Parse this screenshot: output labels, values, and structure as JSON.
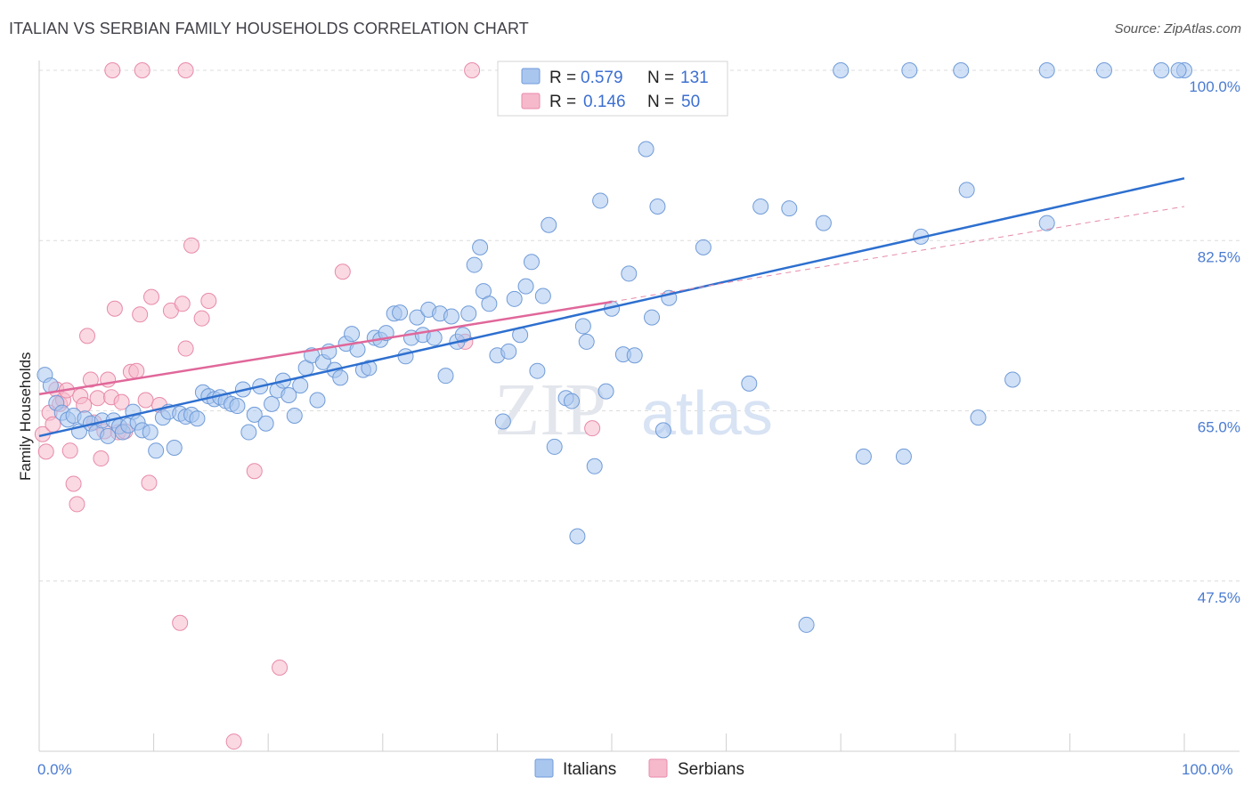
{
  "title": "ITALIAN VS SERBIAN FAMILY HOUSEHOLDS CORRELATION CHART",
  "source": "Source: ZipAtlas.com",
  "watermark": {
    "zip": "ZIP",
    "atlas": "atlas"
  },
  "chart_data": {
    "type": "scatter",
    "ylabel": "Family Households",
    "xlim": [
      0,
      100
    ],
    "ylim": [
      30,
      100
    ],
    "x_tick_labels": {
      "min": "0.0%",
      "max": "100.0%"
    },
    "y_ticks": [
      {
        "value": 47.5,
        "label": "47.5%"
      },
      {
        "value": 65.0,
        "label": "65.0%"
      },
      {
        "value": 82.5,
        "label": "82.5%"
      },
      {
        "value": 100.0,
        "label": "100.0%"
      }
    ],
    "grid": true,
    "legend_position": "top-center",
    "stats": [
      {
        "r_label": "R =",
        "r_value": "0.579",
        "n_label": "N =",
        "n_value": "131",
        "color": "#a9c6ef"
      },
      {
        "r_label": "R =",
        "r_value": "0.146",
        "n_label": "N =",
        "n_value": "50",
        "color": "#f6b9cc"
      }
    ],
    "series": [
      {
        "name": "Italians",
        "color": "#a9c6ef",
        "edge": "#6f9bd8",
        "trend": {
          "x0": 0,
          "y0": 62.4,
          "x1": 100,
          "y1": 88.9,
          "color": "#2d6fcf"
        },
        "points": [
          [
            0.5,
            68.7
          ],
          [
            1,
            67.6
          ],
          [
            1.5,
            65.8
          ],
          [
            2,
            64.8
          ],
          [
            2.5,
            64.1
          ],
          [
            3,
            64.5
          ],
          [
            3.5,
            62.9
          ],
          [
            4,
            64.2
          ],
          [
            4.5,
            63.7
          ],
          [
            5,
            62.8
          ],
          [
            5.5,
            64.0
          ],
          [
            6,
            62.4
          ],
          [
            6.5,
            64.0
          ],
          [
            7,
            63.4
          ],
          [
            7.3,
            62.8
          ],
          [
            7.8,
            63.5
          ],
          [
            8.2,
            64.9
          ],
          [
            8.6,
            63.8
          ],
          [
            9,
            63.0
          ],
          [
            9.7,
            62.8
          ],
          [
            10.2,
            60.9
          ],
          [
            10.8,
            64.3
          ],
          [
            11.3,
            64.9
          ],
          [
            11.8,
            61.2
          ],
          [
            12.3,
            64.7
          ],
          [
            12.8,
            64.4
          ],
          [
            13.3,
            64.6
          ],
          [
            13.8,
            64.2
          ],
          [
            14.3,
            66.9
          ],
          [
            14.8,
            66.5
          ],
          [
            15.3,
            66.2
          ],
          [
            15.8,
            66.4
          ],
          [
            16.3,
            66.0
          ],
          [
            16.8,
            65.7
          ],
          [
            17.3,
            65.5
          ],
          [
            17.8,
            67.2
          ],
          [
            18.3,
            62.8
          ],
          [
            18.8,
            64.6
          ],
          [
            19.3,
            67.5
          ],
          [
            19.8,
            63.7
          ],
          [
            20.3,
            65.7
          ],
          [
            20.8,
            67.1
          ],
          [
            21.3,
            68.1
          ],
          [
            21.8,
            66.6
          ],
          [
            22.3,
            64.5
          ],
          [
            22.8,
            67.6
          ],
          [
            23.3,
            69.4
          ],
          [
            23.8,
            70.7
          ],
          [
            24.3,
            66.1
          ],
          [
            24.8,
            70.0
          ],
          [
            25.3,
            71.1
          ],
          [
            25.8,
            69.2
          ],
          [
            26.3,
            68.4
          ],
          [
            26.8,
            71.9
          ],
          [
            27.3,
            72.9
          ],
          [
            27.8,
            71.3
          ],
          [
            28.3,
            69.2
          ],
          [
            28.8,
            69.4
          ],
          [
            29.3,
            72.5
          ],
          [
            29.8,
            72.3
          ],
          [
            30.3,
            73.0
          ],
          [
            31,
            75.0
          ],
          [
            31.5,
            75.1
          ],
          [
            32,
            70.6
          ],
          [
            32.5,
            72.5
          ],
          [
            33,
            74.6
          ],
          [
            33.5,
            72.8
          ],
          [
            34,
            75.4
          ],
          [
            34.5,
            72.5
          ],
          [
            35,
            75.0
          ],
          [
            35.5,
            68.6
          ],
          [
            36,
            74.7
          ],
          [
            36.5,
            72.1
          ],
          [
            37,
            72.8
          ],
          [
            37.5,
            75.0
          ],
          [
            38,
            80.0
          ],
          [
            38.5,
            81.8
          ],
          [
            38.8,
            77.3
          ],
          [
            39.3,
            76.0
          ],
          [
            40,
            70.7
          ],
          [
            40.5,
            63.9
          ],
          [
            41,
            71.1
          ],
          [
            41.5,
            76.5
          ],
          [
            42,
            72.8
          ],
          [
            42.5,
            77.8
          ],
          [
            43,
            80.3
          ],
          [
            43.5,
            69.1
          ],
          [
            44,
            76.8
          ],
          [
            44.5,
            84.1
          ],
          [
            45,
            61.3
          ],
          [
            46,
            66.3
          ],
          [
            46.5,
            66.0
          ],
          [
            47,
            52.1
          ],
          [
            47.5,
            73.7
          ],
          [
            47.8,
            72.1
          ],
          [
            48.5,
            59.3
          ],
          [
            49,
            86.6
          ],
          [
            49.5,
            67.0
          ],
          [
            50,
            75.5
          ],
          [
            51,
            70.8
          ],
          [
            51.5,
            79.1
          ],
          [
            52,
            70.7
          ],
          [
            53,
            91.9
          ],
          [
            53.5,
            74.6
          ],
          [
            54,
            86.0
          ],
          [
            54.5,
            63.0
          ],
          [
            55,
            76.6
          ],
          [
            58,
            81.8
          ],
          [
            62,
            67.8
          ],
          [
            63,
            86.0
          ],
          [
            65.5,
            85.8
          ],
          [
            67,
            43.0
          ],
          [
            68.5,
            84.3
          ],
          [
            72,
            60.3
          ],
          [
            75.5,
            60.3
          ],
          [
            77,
            82.9
          ],
          [
            81,
            87.7
          ],
          [
            82,
            64.3
          ],
          [
            85,
            68.2
          ],
          [
            88,
            84.3
          ],
          [
            100,
            100.0
          ],
          [
            99.5,
            100.0
          ],
          [
            98,
            100.0
          ],
          [
            93,
            100.0
          ],
          [
            88,
            100.0
          ],
          [
            80.5,
            100.0
          ],
          [
            76,
            100.0
          ],
          [
            70,
            100.0
          ],
          [
            59,
            100.0
          ],
          [
            58.5,
            100.0
          ]
        ]
      },
      {
        "name": "Serbians",
        "color": "#f6b9cc",
        "edge": "#e88aa8",
        "trend": {
          "x0": 0,
          "y0": 66.7,
          "x1": 50,
          "y1": 76.2,
          "color": "#e0679a"
        },
        "dash": {
          "x0": 50,
          "y0": 76.2,
          "x1": 100,
          "y1": 86.0,
          "color": "#e58aa9"
        },
        "points": [
          [
            0.3,
            62.6
          ],
          [
            0.6,
            60.8
          ],
          [
            0.9,
            64.8
          ],
          [
            1.2,
            63.6
          ],
          [
            1.5,
            67.2
          ],
          [
            1.8,
            65.7
          ],
          [
            2.1,
            66.1
          ],
          [
            2.4,
            67.1
          ],
          [
            2.7,
            60.9
          ],
          [
            3.0,
            57.5
          ],
          [
            3.3,
            55.4
          ],
          [
            3.6,
            66.5
          ],
          [
            3.9,
            65.6
          ],
          [
            4.2,
            72.7
          ],
          [
            4.5,
            68.2
          ],
          [
            4.8,
            63.8
          ],
          [
            5.1,
            66.3
          ],
          [
            5.4,
            60.1
          ],
          [
            5.7,
            62.9
          ],
          [
            6.0,
            68.2
          ],
          [
            6.3,
            66.4
          ],
          [
            6.6,
            75.5
          ],
          [
            6.9,
            62.8
          ],
          [
            7.2,
            65.9
          ],
          [
            7.5,
            62.9
          ],
          [
            8.0,
            69.0
          ],
          [
            8.5,
            69.1
          ],
          [
            8.8,
            74.9
          ],
          [
            9.3,
            66.1
          ],
          [
            9.6,
            57.6
          ],
          [
            9.8,
            76.7
          ],
          [
            10.5,
            65.6
          ],
          [
            11.5,
            75.3
          ],
          [
            12.3,
            43.2
          ],
          [
            12.5,
            76.0
          ],
          [
            12.8,
            71.4
          ],
          [
            13.3,
            82.0
          ],
          [
            14.2,
            74.5
          ],
          [
            14.8,
            76.3
          ],
          [
            17,
            31.0
          ],
          [
            18.8,
            58.8
          ],
          [
            21,
            38.6
          ],
          [
            26.5,
            79.3
          ],
          [
            37.2,
            72.1
          ],
          [
            48.3,
            63.2
          ],
          [
            6.4,
            100.0
          ],
          [
            9.0,
            100.0
          ],
          [
            12.8,
            100.0
          ],
          [
            37.8,
            100.0
          ]
        ]
      }
    ]
  }
}
